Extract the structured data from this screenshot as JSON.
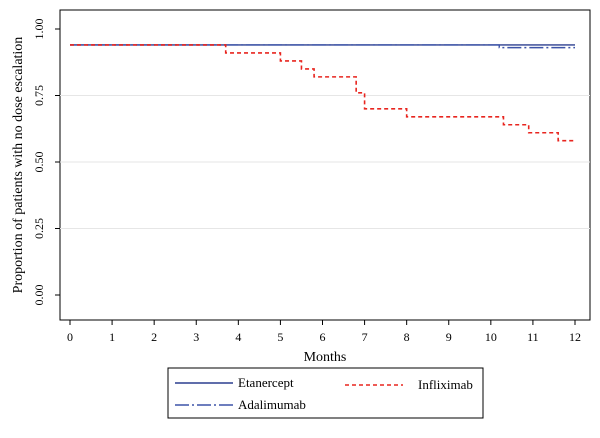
{
  "chart_data": {
    "type": "line",
    "step": true,
    "xlabel": "Months",
    "ylabel": "Proportion of patients with no dose escalation",
    "xlim": [
      0,
      12
    ],
    "ylim": [
      0,
      1
    ],
    "xticks": [
      "0",
      "1",
      "2",
      "3",
      "4",
      "5",
      "6",
      "7",
      "8",
      "9",
      "10",
      "11",
      "12"
    ],
    "yticks": [
      "0.00",
      "0.25",
      "0.50",
      "0.75",
      "1.00"
    ],
    "grid": true,
    "legend_position": "bottom",
    "series": [
      {
        "name": "Etanercept",
        "color": "#2b3f8f",
        "style": "solid",
        "x": [
          0,
          12
        ],
        "y": [
          0.94,
          0.94
        ]
      },
      {
        "name": "Adalimumab",
        "color": "#3d54a8",
        "style": "dash-dot",
        "x": [
          0,
          10.2,
          12
        ],
        "y": [
          0.94,
          0.93,
          0.93
        ]
      },
      {
        "name": "Infliximab",
        "color": "#e8251f",
        "style": "dashed",
        "x": [
          0,
          3.7,
          5.0,
          5.5,
          5.8,
          6.8,
          7.0,
          8.0,
          10.3,
          10.9,
          11.6,
          12
        ],
        "y": [
          0.94,
          0.91,
          0.88,
          0.85,
          0.82,
          0.76,
          0.7,
          0.67,
          0.64,
          0.61,
          0.58,
          0.58
        ]
      }
    ]
  }
}
